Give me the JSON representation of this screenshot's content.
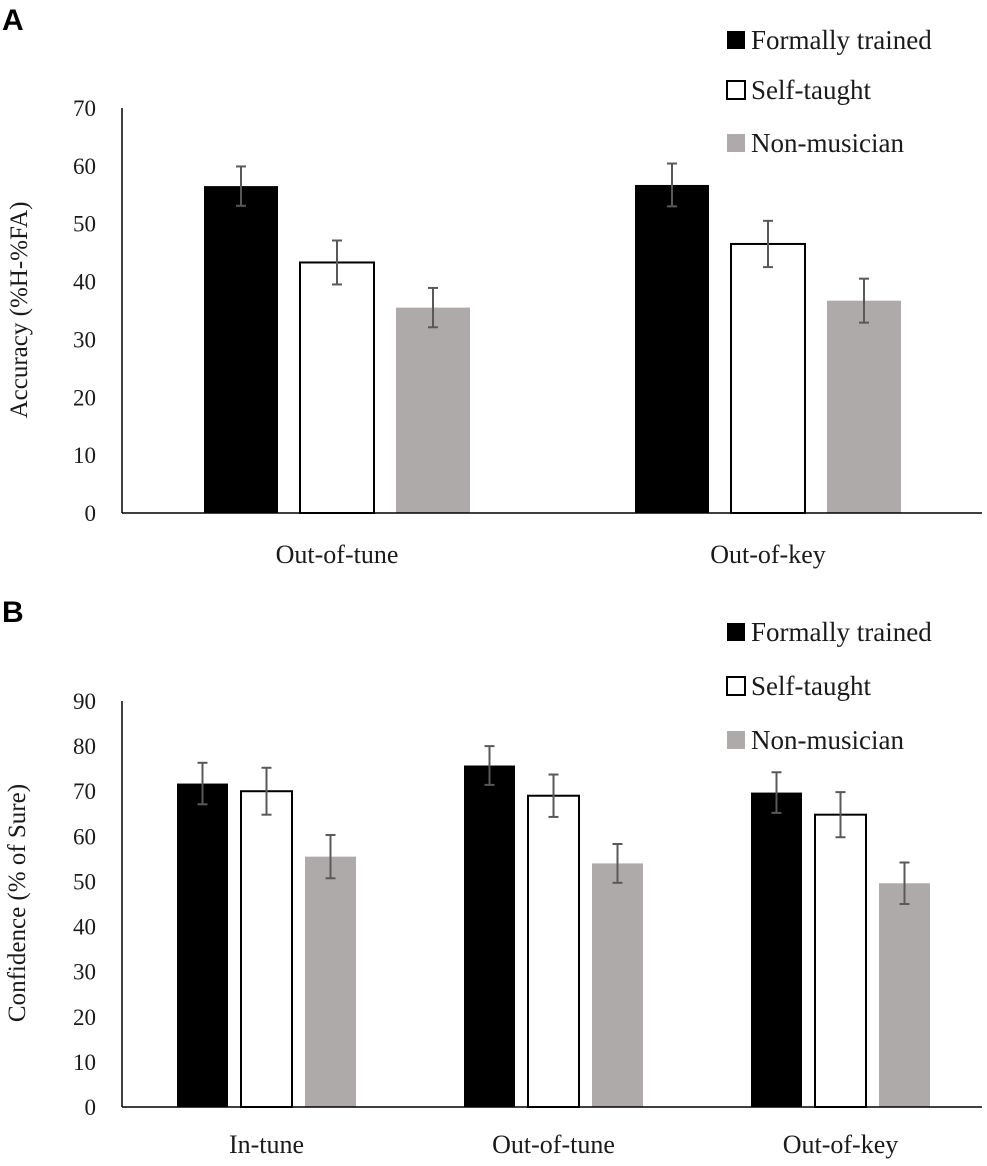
{
  "chart_data": [
    {
      "panel": "A",
      "type": "bar",
      "title": "",
      "xlabel": "",
      "ylabel": "Accuracy (%H-%FA)",
      "ylim": [
        0,
        70
      ],
      "yticks": [
        0,
        10,
        20,
        30,
        40,
        50,
        60,
        70
      ],
      "grid": false,
      "legend_position": "top-right",
      "categories": [
        "Out-of-tune",
        "Out-of-key"
      ],
      "series": [
        {
          "name": "Formally trained",
          "color": "#000000",
          "fill": "solid",
          "values": [
            56.5,
            56.7
          ],
          "errors": [
            3.4,
            3.7
          ]
        },
        {
          "name": "Self-taught",
          "color": "#ffffff",
          "fill": "outline",
          "values": [
            43.3,
            46.5
          ],
          "errors": [
            3.8,
            4.0
          ]
        },
        {
          "name": "Non-musician",
          "color": "#aeaaaa",
          "fill": "solid",
          "values": [
            35.5,
            36.7
          ],
          "errors": [
            3.4,
            3.8
          ]
        }
      ]
    },
    {
      "panel": "B",
      "type": "bar",
      "title": "",
      "xlabel": "",
      "ylabel": "Confidence (% of Sure)",
      "ylim": [
        0,
        90
      ],
      "yticks": [
        0,
        10,
        20,
        30,
        40,
        50,
        60,
        70,
        80,
        90
      ],
      "grid": false,
      "legend_position": "top-right",
      "categories": [
        "In-tune",
        "Out-of-tune",
        "Out-of-key"
      ],
      "series": [
        {
          "name": "Formally trained",
          "color": "#000000",
          "fill": "solid",
          "values": [
            71.7,
            75.7,
            69.7
          ],
          "errors": [
            4.6,
            4.3,
            4.5
          ]
        },
        {
          "name": "Self-taught",
          "color": "#ffffff",
          "fill": "outline",
          "values": [
            70.0,
            69.0,
            64.8
          ],
          "errors": [
            5.2,
            4.7,
            5.0
          ]
        },
        {
          "name": "Non-musician",
          "color": "#aeaaaa",
          "fill": "solid",
          "values": [
            55.5,
            54.0,
            49.6
          ],
          "errors": [
            4.8,
            4.3,
            4.6
          ]
        }
      ]
    }
  ]
}
